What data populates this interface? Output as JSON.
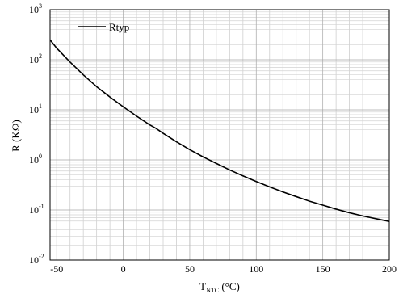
{
  "chart_data": {
    "type": "line",
    "ylabel": "R (KΩ)",
    "xlabel": {
      "main": "T",
      "sub": "NTC",
      "unit": " (°C)"
    },
    "x_ticks": [
      -50,
      0,
      50,
      100,
      150,
      200
    ],
    "y_ticks": [
      {
        "value": 0.01,
        "base": "10",
        "exp": "-2"
      },
      {
        "value": 0.1,
        "base": "10",
        "exp": "-1"
      },
      {
        "value": 1,
        "base": "10",
        "exp": "0"
      },
      {
        "value": 10,
        "base": "10",
        "exp": "1"
      },
      {
        "value": 100,
        "base": "10",
        "exp": "2"
      },
      {
        "value": 1000,
        "base": "10",
        "exp": "3"
      }
    ],
    "xlim": [
      -55,
      200
    ],
    "ylim": [
      0.01,
      1000
    ],
    "y_scale": "log",
    "x_grid_step": 10,
    "grid": true,
    "legend_position": "top-left",
    "series": [
      {
        "name": "Rtyp",
        "color": "#000000",
        "x": [
          -55,
          -50,
          -40,
          -30,
          -20,
          -10,
          0,
          10,
          20,
          25,
          30,
          40,
          50,
          60,
          70,
          80,
          90,
          100,
          110,
          120,
          130,
          140,
          150,
          160,
          170,
          180,
          190,
          200
        ],
        "y": [
          250,
          170,
          90,
          50,
          29,
          18,
          11.5,
          7.5,
          5,
          4.2,
          3.4,
          2.3,
          1.6,
          1.15,
          0.85,
          0.63,
          0.48,
          0.37,
          0.29,
          0.23,
          0.185,
          0.15,
          0.125,
          0.104,
          0.088,
          0.076,
          0.067,
          0.059
        ]
      }
    ]
  }
}
